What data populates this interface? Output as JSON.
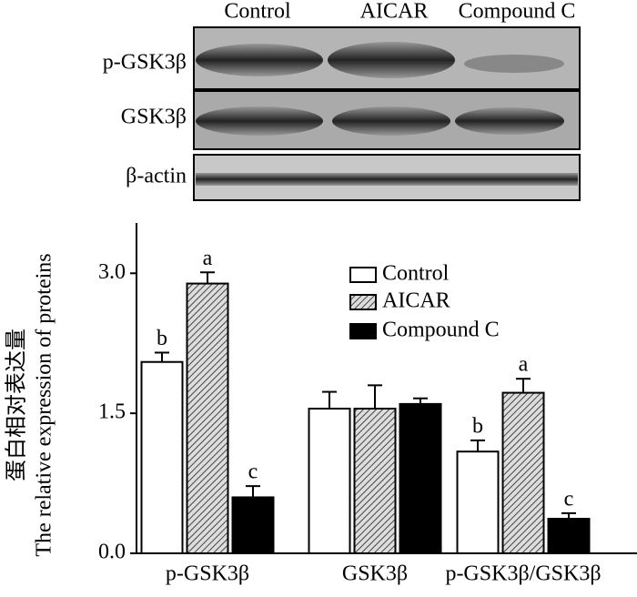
{
  "blot": {
    "lanes": [
      "Control",
      "AICAR",
      "Compound C"
    ],
    "rows": [
      "p-GSK3β",
      "GSK3β",
      "β-actin"
    ]
  },
  "chart_data": {
    "type": "bar",
    "y_label": [
      "蛋白相对表达量",
      "The relative expression of proteins"
    ],
    "categories": [
      "p-GSK3β",
      "GSK3β",
      "p-GSK3β/GSK3β"
    ],
    "series": [
      {
        "name": "Control",
        "color": "#ffffff",
        "values": [
          2.05,
          1.55,
          1.09
        ],
        "errors": [
          0.1,
          0.18,
          0.12
        ],
        "letters": [
          "b",
          null,
          "b"
        ]
      },
      {
        "name": "AICAR",
        "color": "#888888",
        "pattern": "hatch",
        "values": [
          2.89,
          1.55,
          1.72
        ],
        "errors": [
          0.12,
          0.25,
          0.15
        ],
        "letters": [
          "a",
          null,
          "a"
        ]
      },
      {
        "name": "Compound C",
        "color": "#000000",
        "values": [
          0.6,
          1.6,
          0.37
        ],
        "errors": [
          0.12,
          0.06,
          0.06
        ],
        "letters": [
          "c",
          null,
          "c"
        ]
      }
    ],
    "ylim": [
      0,
      3.5
    ],
    "yticks": [
      {
        "value": 0,
        "label": "0.0"
      },
      {
        "value": 1.5,
        "label": "1.5"
      },
      {
        "value": 3,
        "label": "3.0"
      }
    ],
    "grid": false,
    "legend": "upper right"
  }
}
